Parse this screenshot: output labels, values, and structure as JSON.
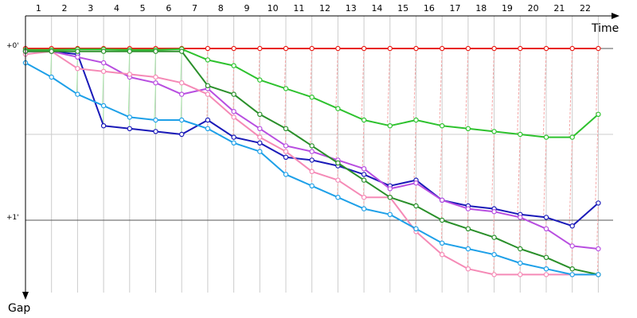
{
  "chart_data": {
    "type": "line",
    "title": "",
    "xlabel": "Time",
    "ylabel": "Gap",
    "x_ticks": [
      "1",
      "2",
      "3",
      "4",
      "5",
      "6",
      "7",
      "8",
      "9",
      "10",
      "11",
      "12",
      "13",
      "14",
      "15",
      "16",
      "17",
      "18",
      "19",
      "20",
      "21",
      "22"
    ],
    "y_ticks": [
      {
        "label": "+0'",
        "value": 0
      },
      {
        "label": "+1'",
        "value": 60
      }
    ],
    "x_range": [
      0,
      23.3
    ],
    "y_range": [
      -8,
      79
    ],
    "y_inverted": true,
    "grid": true,
    "colors": {
      "leader": "#e8211b",
      "lap_line": "#f4a6a6",
      "lap_line_early": "#a8e6a8",
      "grid": "#cccccc",
      "axis": "#000000"
    },
    "series": [
      {
        "color": "#e8211b",
        "values": [
          0,
          0,
          0,
          0,
          0,
          0,
          0,
          0,
          0,
          0,
          0,
          0,
          0,
          0,
          0,
          0,
          0,
          0,
          0,
          0,
          0,
          0,
          0
        ]
      },
      {
        "color": "#2ec22e",
        "values": [
          0.5,
          0.5,
          0.3,
          0.3,
          0.5,
          0.5,
          0.2,
          4,
          6,
          11,
          14,
          17,
          21,
          25,
          27,
          25,
          27,
          28,
          29,
          30,
          31,
          31,
          23
        ]
      },
      {
        "color": "#1a1ab8",
        "values": [
          1,
          1,
          2,
          27,
          28,
          29,
          30,
          25,
          31,
          33,
          38,
          39,
          41,
          44,
          48,
          46,
          53,
          55,
          56,
          58,
          59,
          62,
          54
        ]
      },
      {
        "color": "#b84ee0",
        "values": [
          1,
          1,
          3,
          5,
          10,
          12,
          16,
          14,
          22,
          28,
          34,
          36,
          39,
          42,
          49,
          47,
          53,
          56,
          57,
          59,
          63,
          69,
          70
        ]
      },
      {
        "color": "#f58ab6",
        "values": [
          2,
          1,
          7,
          8,
          9,
          10,
          12,
          16,
          24,
          31,
          36,
          43,
          46,
          52,
          52,
          64,
          72,
          77,
          79,
          79,
          79,
          79,
          79
        ]
      },
      {
        "color": "#2a8f2a",
        "values": [
          1,
          1,
          1,
          1,
          1,
          1,
          1,
          13,
          16,
          23,
          28,
          34,
          40,
          46,
          52,
          55,
          60,
          63,
          66,
          70,
          73,
          77,
          79
        ]
      },
      {
        "color": "#1ea0e8",
        "values": [
          5,
          10,
          16,
          20,
          24,
          25,
          25,
          28,
          33,
          36,
          44,
          48,
          52,
          56,
          58,
          63,
          68,
          70,
          72,
          75,
          77,
          79,
          79
        ]
      }
    ]
  }
}
